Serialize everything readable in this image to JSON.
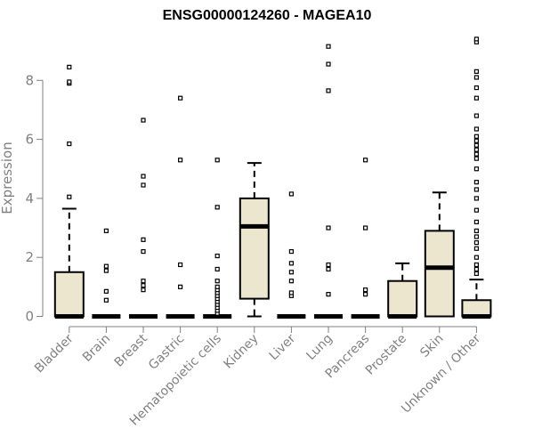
{
  "chart_data": {
    "type": "box",
    "title": "ENSG00000124260 - MAGEA10",
    "ylabel": "Expression",
    "xlabel": "",
    "ylim": [
      -0.1,
      9.6
    ],
    "yticks": [
      0,
      2,
      4,
      6,
      8
    ],
    "grid": false,
    "legend": "none",
    "colors": {
      "box_fill": "#ede6cf",
      "line": "#000000",
      "axis": "#808080",
      "tick_text": "#808080",
      "title": "#000000"
    },
    "categories": [
      "Bladder",
      "Brain",
      "Breast",
      "Gastric",
      "Hematopoietic cells",
      "Kidney",
      "Liver",
      "Lung",
      "Pancreas",
      "Prostate",
      "Skin",
      "Unknown / Other"
    ],
    "boxes": [
      {
        "category": "Bladder",
        "whisker_low": 0,
        "q1": 0,
        "median": 0,
        "q3": 1.5,
        "whisker_high": 3.65,
        "outliers": [
          4.05,
          5.85,
          7.9,
          7.95,
          8.45
        ]
      },
      {
        "category": "Brain",
        "whisker_low": 0,
        "q1": 0,
        "median": 0,
        "q3": 0,
        "whisker_high": 0,
        "outliers": [
          0.55,
          0.85,
          1.55,
          1.7,
          2.9
        ]
      },
      {
        "category": "Breast",
        "whisker_low": 0,
        "q1": 0,
        "median": 0,
        "q3": 0,
        "whisker_high": 0,
        "outliers": [
          0.9,
          1.05,
          1.2,
          2.2,
          2.6,
          4.45,
          4.75,
          6.65
        ]
      },
      {
        "category": "Gastric",
        "whisker_low": 0,
        "q1": 0,
        "median": 0,
        "q3": 0,
        "whisker_high": 0,
        "outliers": [
          1.0,
          1.75,
          5.3,
          7.4
        ]
      },
      {
        "category": "Hematopoietic cells",
        "whisker_low": 0,
        "q1": 0,
        "median": 0,
        "q3": 0,
        "whisker_high": 0,
        "outliers": [
          0.1,
          0.2,
          0.3,
          0.4,
          0.5,
          0.6,
          0.7,
          0.8,
          0.9,
          1.0,
          1.2,
          1.6,
          2.05,
          3.7,
          5.3
        ]
      },
      {
        "category": "Kidney",
        "whisker_low": 0,
        "q1": 0.6,
        "median": 3.05,
        "q3": 4.0,
        "whisker_high": 5.2,
        "outliers": []
      },
      {
        "category": "Liver",
        "whisker_low": 0,
        "q1": 0,
        "median": 0,
        "q3": 0,
        "whisker_high": 0,
        "outliers": [
          0.7,
          0.8,
          1.2,
          1.5,
          1.8,
          2.2,
          4.15
        ]
      },
      {
        "category": "Lung",
        "whisker_low": 0,
        "q1": 0,
        "median": 0,
        "q3": 0,
        "whisker_high": 0,
        "outliers": [
          0.75,
          1.6,
          1.75,
          3.0,
          7.65,
          8.55,
          9.15
        ]
      },
      {
        "category": "Pancreas",
        "whisker_low": 0,
        "q1": 0,
        "median": 0,
        "q3": 0,
        "whisker_high": 0,
        "outliers": [
          0.75,
          0.9,
          3.0,
          5.3
        ]
      },
      {
        "category": "Prostate",
        "whisker_low": 0,
        "q1": 0,
        "median": 0,
        "q3": 1.2,
        "whisker_high": 1.8,
        "outliers": []
      },
      {
        "category": "Skin",
        "whisker_low": 0,
        "q1": 0,
        "median": 1.65,
        "q3": 2.9,
        "whisker_high": 4.2,
        "outliers": []
      },
      {
        "category": "Unknown / Other",
        "whisker_low": 0,
        "q1": 0,
        "median": 0,
        "q3": 0.55,
        "whisker_high": 1.25,
        "outliers": [
          1.45,
          1.6,
          1.75,
          2.0,
          2.3,
          2.5,
          2.7,
          2.9,
          3.2,
          3.6,
          4.0,
          4.3,
          4.55,
          5.0,
          5.35,
          5.5,
          5.65,
          5.8,
          5.95,
          6.1,
          6.35,
          6.8,
          7.4,
          7.75,
          8.1,
          8.3,
          9.3,
          9.4
        ]
      }
    ]
  }
}
